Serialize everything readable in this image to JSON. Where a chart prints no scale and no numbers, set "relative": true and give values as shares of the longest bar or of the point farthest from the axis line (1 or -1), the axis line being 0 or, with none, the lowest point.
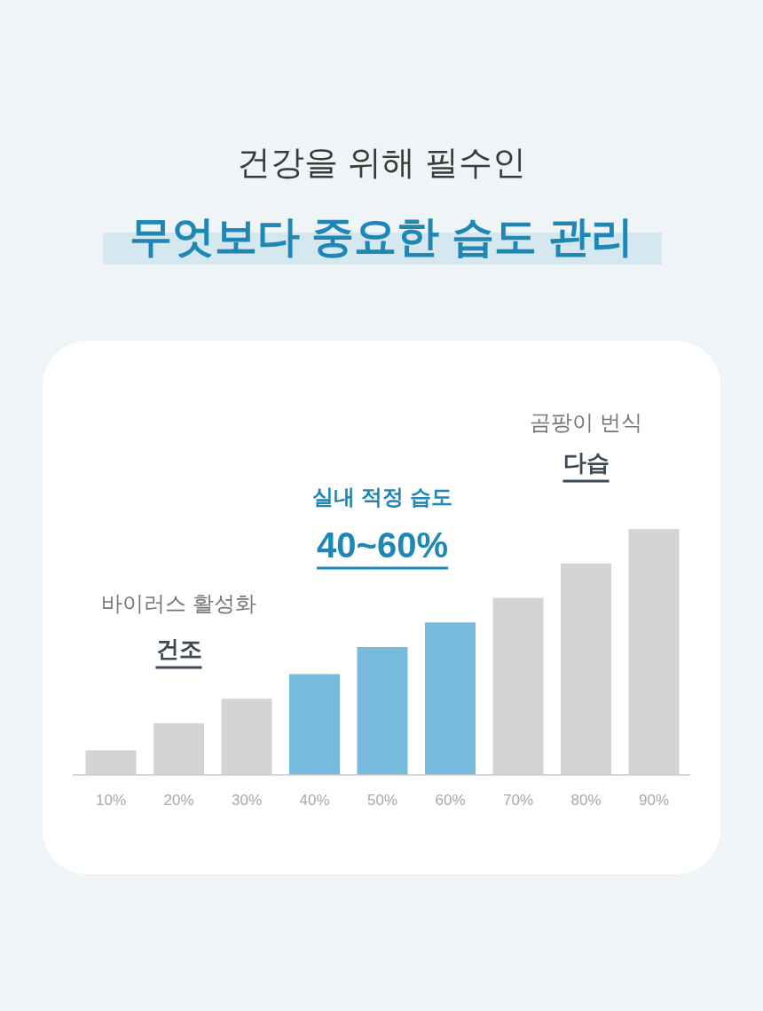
{
  "chart_data": {
    "type": "bar",
    "title": "건강을 위해 필수인",
    "subtitle": "무엇보다 중요한 습도 관리",
    "categories": [
      "10%",
      "20%",
      "30%",
      "40%",
      "50%",
      "60%",
      "70%",
      "80%",
      "90%"
    ],
    "values": [
      0.1,
      0.21,
      0.31,
      0.41,
      0.52,
      0.62,
      0.72,
      0.86,
      1
    ],
    "colors": [
      "#d4d4d4",
      "#d4d4d4",
      "#d4d4d4",
      "#77bbdc",
      "#77bbdc",
      "#77bbdc",
      "#d4d4d4",
      "#d4d4d4",
      "#d4d4d4"
    ],
    "relative": true,
    "annotations": [
      "바이러스 활성화",
      "건조",
      "실내 적정 습도",
      "40~60%",
      "곰팡이 번식",
      "다습"
    ]
  }
}
